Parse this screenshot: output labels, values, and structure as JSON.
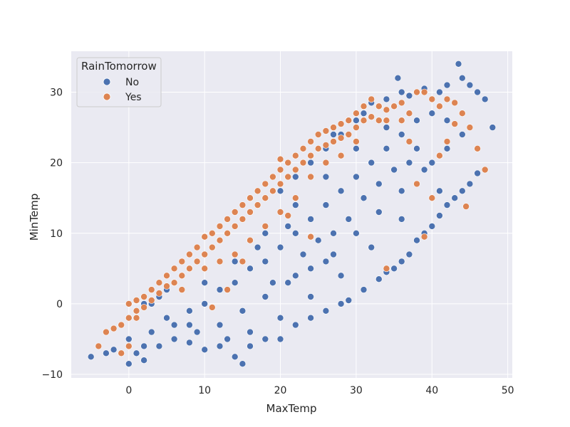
{
  "chart_data": {
    "type": "scatter",
    "title": "",
    "xlabel": "MaxTemp",
    "ylabel": "MinTemp",
    "xlim": [
      -7.6,
      50.6
    ],
    "ylim": [
      -10.5,
      35.8
    ],
    "xticks": [
      0,
      10,
      20,
      30,
      40,
      50
    ],
    "yticks": [
      -10,
      0,
      10,
      20,
      30
    ],
    "xtick_labels": [
      "0",
      "10",
      "20",
      "30",
      "40",
      "50"
    ],
    "ytick_labels": [
      "−10",
      "0",
      "10",
      "20",
      "30"
    ],
    "grid": true,
    "legend": {
      "title": "RainTomorrow",
      "placement": "top-left",
      "entries": [
        {
          "label": "No",
          "color": "#4c72b0"
        },
        {
          "label": "Yes",
          "color": "#dd8452"
        }
      ]
    },
    "colors": {
      "background": "#eaeaf2",
      "grid": "#ffffff",
      "point_edge": "#ffffff"
    },
    "series": [
      {
        "name": "No",
        "color": "#4c72b0",
        "points": [
          [
            -5,
            -7.5
          ],
          [
            -3,
            -7
          ],
          [
            -2,
            -6.5
          ],
          [
            0,
            -8.5
          ],
          [
            1,
            -7
          ],
          [
            2,
            -8
          ],
          [
            0,
            -5
          ],
          [
            2,
            -6
          ],
          [
            4,
            -6
          ],
          [
            6,
            -5
          ],
          [
            8,
            -5.5
          ],
          [
            10,
            -6.5
          ],
          [
            12,
            -6
          ],
          [
            14,
            -7.5
          ],
          [
            15,
            -8.5
          ],
          [
            16,
            -6
          ],
          [
            18,
            -5
          ],
          [
            20,
            -5
          ],
          [
            22,
            -3
          ],
          [
            24,
            -2
          ],
          [
            26,
            -1
          ],
          [
            28,
            0
          ],
          [
            29,
            0.5
          ],
          [
            31,
            2
          ],
          [
            33,
            3.5
          ],
          [
            34,
            4.5
          ],
          [
            35,
            5
          ],
          [
            36,
            6
          ],
          [
            37,
            7
          ],
          [
            38,
            9
          ],
          [
            39,
            10
          ],
          [
            40,
            11
          ],
          [
            41,
            12.5
          ],
          [
            42,
            14
          ],
          [
            43,
            15
          ],
          [
            44,
            16
          ],
          [
            45,
            17
          ],
          [
            46,
            18.5
          ],
          [
            47,
            19
          ],
          [
            48,
            25
          ],
          [
            47,
            29
          ],
          [
            46,
            30
          ],
          [
            45,
            31
          ],
          [
            44,
            32
          ],
          [
            43.5,
            34
          ],
          [
            42,
            31
          ],
          [
            41,
            30
          ],
          [
            40,
            29
          ],
          [
            39,
            30.5
          ],
          [
            38,
            30
          ],
          [
            37,
            29.5
          ],
          [
            36,
            30
          ],
          [
            35.5,
            32
          ],
          [
            34,
            29
          ],
          [
            33,
            28
          ],
          [
            32,
            28.5
          ],
          [
            31,
            27
          ],
          [
            30,
            26
          ],
          [
            29,
            26
          ],
          [
            28,
            24
          ],
          [
            27,
            24
          ],
          [
            26,
            22
          ],
          [
            25,
            22
          ],
          [
            24,
            20
          ],
          [
            23,
            20
          ],
          [
            22,
            18
          ],
          [
            21,
            18
          ],
          [
            20,
            16
          ],
          [
            19,
            16
          ],
          [
            18,
            15
          ],
          [
            17,
            14
          ],
          [
            16,
            13
          ],
          [
            15,
            12
          ],
          [
            14,
            11
          ],
          [
            13,
            10
          ],
          [
            12,
            9
          ],
          [
            11,
            8
          ],
          [
            10,
            7
          ],
          [
            9,
            6
          ],
          [
            8,
            5
          ],
          [
            7,
            4
          ],
          [
            6,
            3
          ],
          [
            5,
            2
          ],
          [
            4,
            1
          ],
          [
            3,
            0
          ],
          [
            2,
            0
          ],
          [
            1,
            -1
          ],
          [
            5,
            -2
          ],
          [
            8,
            -1
          ],
          [
            10,
            0
          ],
          [
            12,
            2
          ],
          [
            14,
            3
          ],
          [
            16,
            5
          ],
          [
            18,
            6
          ],
          [
            20,
            8
          ],
          [
            22,
            10
          ],
          [
            24,
            12
          ],
          [
            26,
            14
          ],
          [
            28,
            16
          ],
          [
            30,
            18
          ],
          [
            32,
            20
          ],
          [
            34,
            22
          ],
          [
            36,
            24
          ],
          [
            38,
            26
          ],
          [
            40,
            27
          ],
          [
            42,
            26
          ],
          [
            8,
            -3
          ],
          [
            12,
            -3
          ],
          [
            15,
            -1
          ],
          [
            18,
            1
          ],
          [
            21,
            3
          ],
          [
            24,
            5
          ],
          [
            27,
            7
          ],
          [
            30,
            10
          ],
          [
            33,
            13
          ],
          [
            36,
            16
          ],
          [
            39,
            19
          ],
          [
            42,
            22
          ],
          [
            44,
            24
          ],
          [
            10,
            3
          ],
          [
            14,
            6
          ],
          [
            18,
            10
          ],
          [
            22,
            14
          ],
          [
            26,
            18
          ],
          [
            30,
            22
          ],
          [
            34,
            25
          ],
          [
            38,
            22
          ],
          [
            40,
            20
          ],
          [
            41,
            16
          ],
          [
            36,
            12
          ],
          [
            32,
            8
          ],
          [
            28,
            4
          ],
          [
            24,
            1
          ],
          [
            20,
            -2
          ],
          [
            16,
            -4
          ],
          [
            13,
            -5
          ],
          [
            9,
            -4
          ],
          [
            6,
            -3
          ],
          [
            3,
            -4
          ],
          [
            17,
            8
          ],
          [
            21,
            11
          ],
          [
            25,
            9
          ],
          [
            29,
            12
          ],
          [
            33,
            17
          ],
          [
            37,
            20
          ],
          [
            26,
            6
          ],
          [
            22,
            4
          ],
          [
            19,
            3
          ],
          [
            27,
            10
          ],
          [
            31,
            15
          ],
          [
            35,
            19
          ],
          [
            23,
            7
          ]
        ]
      },
      {
        "name": "Yes",
        "color": "#dd8452",
        "points": [
          [
            -4,
            -6
          ],
          [
            -3,
            -4
          ],
          [
            -2,
            -3.5
          ],
          [
            -1,
            -3
          ],
          [
            0,
            -2
          ],
          [
            1,
            -1
          ],
          [
            0,
            0
          ],
          [
            1,
            0.5
          ],
          [
            2,
            1
          ],
          [
            3,
            2
          ],
          [
            4,
            3
          ],
          [
            5,
            4
          ],
          [
            6,
            5
          ],
          [
            7,
            6
          ],
          [
            8,
            7
          ],
          [
            9,
            8
          ],
          [
            10,
            9.5
          ],
          [
            11,
            10
          ],
          [
            12,
            11
          ],
          [
            13,
            12
          ],
          [
            14,
            13
          ],
          [
            15,
            14
          ],
          [
            16,
            15
          ],
          [
            17,
            16
          ],
          [
            18,
            17
          ],
          [
            19,
            18
          ],
          [
            20,
            19
          ],
          [
            21,
            20
          ],
          [
            22,
            21
          ],
          [
            23,
            22
          ],
          [
            24,
            23
          ],
          [
            25,
            24
          ],
          [
            26,
            24.5
          ],
          [
            27,
            25
          ],
          [
            28,
            25.5
          ],
          [
            29,
            26
          ],
          [
            30,
            27
          ],
          [
            31,
            28
          ],
          [
            32,
            29
          ],
          [
            33,
            28
          ],
          [
            34,
            27.5
          ],
          [
            35,
            28
          ],
          [
            36,
            28.5
          ],
          [
            37,
            27
          ],
          [
            38,
            30
          ],
          [
            39,
            30
          ],
          [
            40,
            29
          ],
          [
            41,
            28
          ],
          [
            42,
            29
          ],
          [
            43,
            28.5
          ],
          [
            44,
            27
          ],
          [
            45,
            25
          ],
          [
            46,
            22
          ],
          [
            47,
            19
          ],
          [
            44.5,
            13.8
          ],
          [
            1,
            -2
          ],
          [
            2,
            -0.5
          ],
          [
            3,
            0.5
          ],
          [
            4,
            1.5
          ],
          [
            5,
            2.5
          ],
          [
            6,
            3
          ],
          [
            7,
            4
          ],
          [
            8,
            5
          ],
          [
            9,
            6
          ],
          [
            10,
            7
          ],
          [
            11,
            8
          ],
          [
            12,
            9
          ],
          [
            13,
            10
          ],
          [
            14,
            11
          ],
          [
            15,
            12
          ],
          [
            16,
            13
          ],
          [
            17,
            14
          ],
          [
            18,
            15
          ],
          [
            19,
            16
          ],
          [
            20,
            17
          ],
          [
            21,
            18
          ],
          [
            22,
            19
          ],
          [
            23,
            20
          ],
          [
            24,
            21
          ],
          [
            25,
            22
          ],
          [
            26,
            22.5
          ],
          [
            27,
            23
          ],
          [
            28,
            23.5
          ],
          [
            29,
            24
          ],
          [
            30,
            25
          ],
          [
            31,
            26
          ],
          [
            32,
            26.5
          ],
          [
            33,
            26
          ],
          [
            34,
            26
          ],
          [
            -1,
            -7
          ],
          [
            0,
            -6
          ],
          [
            7,
            2
          ],
          [
            10,
            5
          ],
          [
            12,
            6
          ],
          [
            14,
            7
          ],
          [
            16,
            9
          ],
          [
            18,
            11
          ],
          [
            20,
            13
          ],
          [
            22,
            15
          ],
          [
            24,
            18
          ],
          [
            26,
            20
          ],
          [
            28,
            21
          ],
          [
            38,
            17
          ],
          [
            40,
            15
          ],
          [
            39,
            9.5
          ],
          [
            34,
            5
          ],
          [
            24,
            9.5
          ],
          [
            21,
            12.5
          ],
          [
            13,
            2
          ],
          [
            11,
            -0.5
          ],
          [
            15,
            6
          ],
          [
            20,
            20.5
          ],
          [
            30,
            23
          ],
          [
            36,
            26
          ],
          [
            42,
            23
          ],
          [
            43,
            25.5
          ],
          [
            41,
            21
          ],
          [
            37,
            23
          ]
        ]
      }
    ]
  }
}
